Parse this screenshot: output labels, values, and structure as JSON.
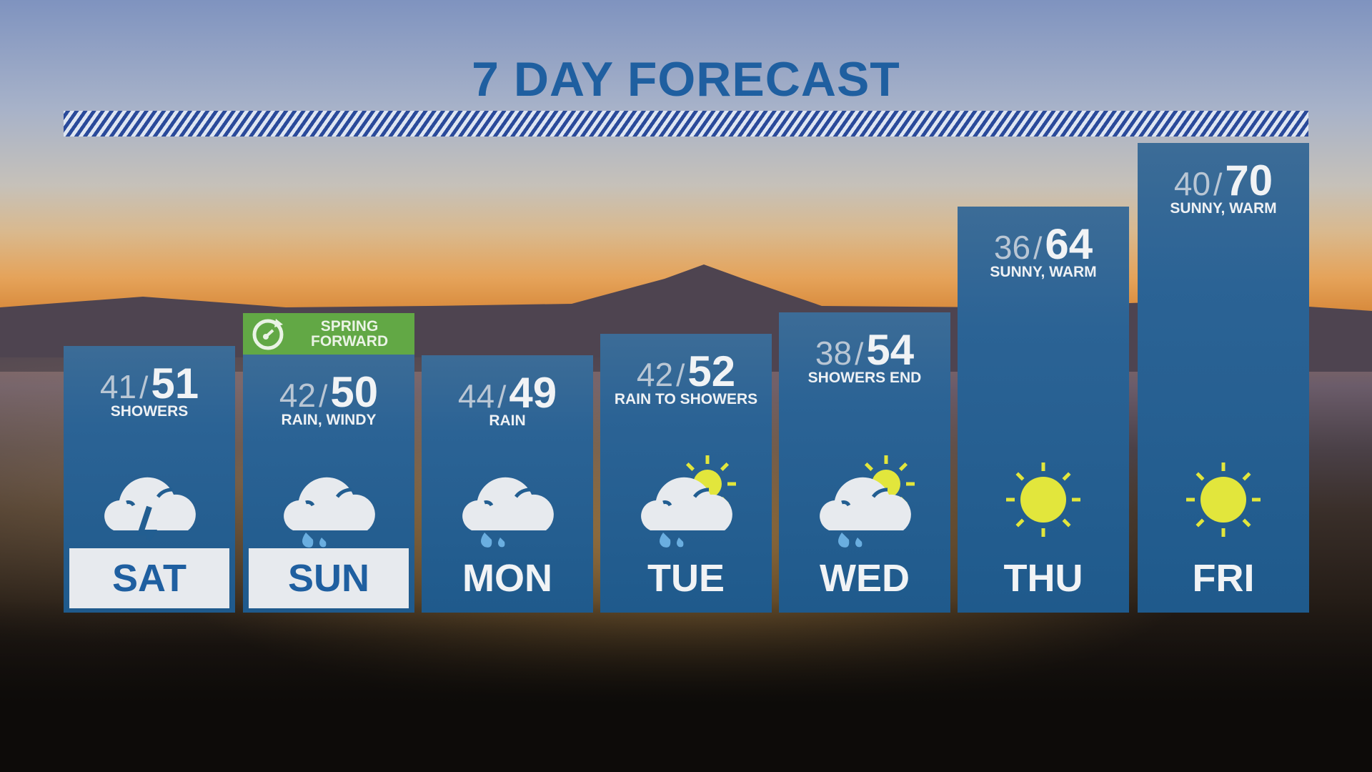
{
  "title": "7 DAY FORECAST",
  "badge": {
    "line1": "SPRING",
    "line2": "FORWARD",
    "icon": "clock-forward-icon",
    "color": "#62a845"
  },
  "colors": {
    "accent": "#1f5fa0",
    "column": "#225e91",
    "sun": "#e2e63c",
    "rain": "#6aaee0"
  },
  "days": [
    {
      "day": "SAT",
      "low": "41",
      "high": "51",
      "desc": "SHOWERS",
      "icon": "cloud-lightning-icon",
      "selected": true
    },
    {
      "day": "SUN",
      "low": "42",
      "high": "50",
      "desc": "RAIN, WINDY",
      "icon": "cloud-rain-icon",
      "selected": true
    },
    {
      "day": "MON",
      "low": "44",
      "high": "49",
      "desc": "RAIN",
      "icon": "cloud-rain-icon",
      "selected": false
    },
    {
      "day": "TUE",
      "low": "42",
      "high": "52",
      "desc": "RAIN TO SHOWERS",
      "icon": "sun-cloud-rain-icon",
      "selected": false
    },
    {
      "day": "WED",
      "low": "38",
      "high": "54",
      "desc": "SHOWERS END",
      "icon": "sun-cloud-rain-icon",
      "selected": false
    },
    {
      "day": "THU",
      "low": "36",
      "high": "64",
      "desc": "SUNNY, WARM",
      "icon": "sun-icon",
      "selected": false
    },
    {
      "day": "FRI",
      "low": "40",
      "high": "70",
      "desc": "SUNNY, WARM",
      "icon": "sun-icon",
      "selected": false
    }
  ]
}
